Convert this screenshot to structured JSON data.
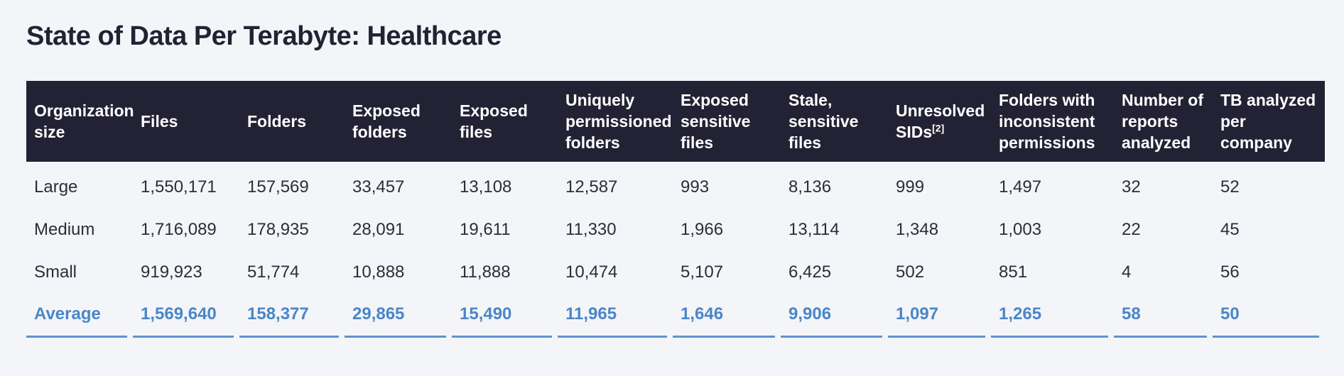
{
  "page": {
    "title": "State of Data Per Terabyte: Healthcare"
  },
  "colors": {
    "page_background": "#f4f5f9",
    "header_background": "#232234",
    "header_text": "#ffffff",
    "body_text": "#2d2d3a",
    "accent_blue": "#4a86c7",
    "underline_blue": "#5e94cb"
  },
  "chart_data": {
    "type": "table",
    "title": "State of Data Per Terabyte: Healthcare",
    "columns": [
      {
        "label": "Organization size"
      },
      {
        "label": "Files"
      },
      {
        "label": "Folders"
      },
      {
        "label": "Exposed folders"
      },
      {
        "label": "Exposed files"
      },
      {
        "label": "Uniquely permissioned folders"
      },
      {
        "label": "Exposed sensitive files"
      },
      {
        "label": "Stale, sensitive files"
      },
      {
        "label": "Unresolved SIDs",
        "footnote": "[2]"
      },
      {
        "label": "Folders with inconsistent permissions"
      },
      {
        "label": "Number of reports analyzed"
      },
      {
        "label": "TB analyzed per company"
      }
    ],
    "rows": [
      {
        "label": "Large",
        "values": [
          "1,550,171",
          "157,569",
          "33,457",
          "13,108",
          "12,587",
          "993",
          "8,136",
          "999",
          "1,497",
          "32",
          "52"
        ]
      },
      {
        "label": "Medium",
        "values": [
          "1,716,089",
          "178,935",
          "28,091",
          "19,611",
          "11,330",
          "1,966",
          "13,114",
          "1,348",
          "1,003",
          "22",
          "45"
        ]
      },
      {
        "label": "Small",
        "values": [
          "919,923",
          "51,774",
          "10,888",
          "11,888",
          "10,474",
          "5,107",
          "6,425",
          "502",
          "851",
          "4",
          "56"
        ]
      }
    ],
    "average_row": {
      "label": "Average",
      "values": [
        "1,569,640",
        "158,377",
        "29,865",
        "15,490",
        "11,965",
        "1,646",
        "9,906",
        "1,097",
        "1,265",
        "58",
        "50"
      ]
    }
  }
}
